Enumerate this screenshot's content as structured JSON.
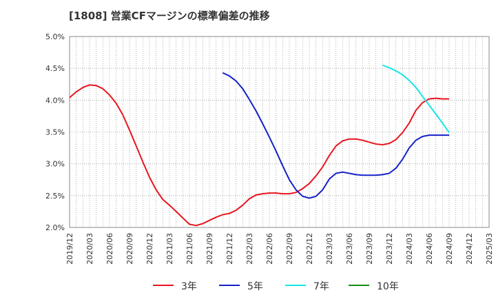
{
  "chart_data": {
    "type": "line",
    "title": "[1808]  営業CFマージンの標準偏差の推移",
    "xlabel": "",
    "ylabel": "",
    "ylim": [
      0.02,
      0.05
    ],
    "y_ticks": [
      "2.0%",
      "2.5%",
      "3.0%",
      "3.5%",
      "4.0%",
      "4.5%",
      "5.0%"
    ],
    "y_tick_values": [
      0.02,
      0.025,
      0.03,
      0.035,
      0.04,
      0.045,
      0.05
    ],
    "x_ticks": [
      "2019/12",
      "2020/03",
      "2020/06",
      "2020/09",
      "2020/12",
      "2021/03",
      "2021/06",
      "2021/09",
      "2021/12",
      "2022/03",
      "2022/06",
      "2022/09",
      "2022/12",
      "2023/03",
      "2023/06",
      "2023/09",
      "2023/12",
      "2024/03",
      "2024/06",
      "2024/09",
      "2024/12",
      "2025/03"
    ],
    "grid": true,
    "legend_position": "bottom",
    "series": [
      {
        "name": "3年",
        "color": "#e8141e",
        "x": [
          "2019/12",
          "2020/01",
          "2020/02",
          "2020/03",
          "2020/04",
          "2020/05",
          "2020/06",
          "2020/07",
          "2020/08",
          "2020/09",
          "2020/10",
          "2020/11",
          "2020/12",
          "2021/01",
          "2021/02",
          "2021/03",
          "2021/04",
          "2021/05",
          "2021/06",
          "2021/07",
          "2021/08",
          "2021/09",
          "2021/10",
          "2021/11",
          "2021/12",
          "2022/01",
          "2022/02",
          "2022/03",
          "2022/04",
          "2022/05",
          "2022/06",
          "2022/07",
          "2022/08",
          "2022/09",
          "2022/10",
          "2022/11",
          "2022/12",
          "2023/01",
          "2023/02",
          "2023/03",
          "2023/04",
          "2023/05",
          "2023/06",
          "2023/07",
          "2023/08",
          "2023/09",
          "2023/10",
          "2023/11",
          "2023/12",
          "2024/01",
          "2024/02",
          "2024/03",
          "2024/04",
          "2024/05",
          "2024/06",
          "2024/07",
          "2024/08",
          "2024/09"
        ],
        "values": [
          0.0404,
          0.0413,
          0.042,
          0.0424,
          0.0423,
          0.0418,
          0.0408,
          0.0395,
          0.0377,
          0.0353,
          0.0328,
          0.0303,
          0.0279,
          0.0259,
          0.0244,
          0.0235,
          0.0225,
          0.0215,
          0.0205,
          0.0203,
          0.0206,
          0.0211,
          0.0216,
          0.022,
          0.0222,
          0.0227,
          0.0235,
          0.0245,
          0.0251,
          0.0253,
          0.0254,
          0.0254,
          0.0253,
          0.0253,
          0.0255,
          0.0261,
          0.0269,
          0.0281,
          0.0295,
          0.0313,
          0.0328,
          0.0336,
          0.0339,
          0.0339,
          0.0337,
          0.0334,
          0.0331,
          0.033,
          0.0332,
          0.0338,
          0.0349,
          0.0364,
          0.0384,
          0.0396,
          0.0402,
          0.0403,
          0.0402,
          0.0402
        ]
      },
      {
        "name": "5年",
        "color": "#1420c8",
        "x": [
          "2021/11",
          "2021/12",
          "2022/01",
          "2022/02",
          "2022/03",
          "2022/04",
          "2022/05",
          "2022/06",
          "2022/07",
          "2022/08",
          "2022/09",
          "2022/10",
          "2022/11",
          "2022/12",
          "2023/01",
          "2023/02",
          "2023/03",
          "2023/04",
          "2023/05",
          "2023/06",
          "2023/07",
          "2023/08",
          "2023/09",
          "2023/10",
          "2023/11",
          "2023/12",
          "2024/01",
          "2024/02",
          "2024/03",
          "2024/04",
          "2024/05",
          "2024/06",
          "2024/07",
          "2024/08",
          "2024/09"
        ],
        "values": [
          0.0443,
          0.0438,
          0.043,
          0.0418,
          0.0401,
          0.0383,
          0.0363,
          0.0342,
          0.032,
          0.0297,
          0.0275,
          0.0259,
          0.0249,
          0.0246,
          0.0249,
          0.0259,
          0.0276,
          0.0285,
          0.0287,
          0.0285,
          0.0283,
          0.0282,
          0.0282,
          0.0282,
          0.0283,
          0.0285,
          0.0293,
          0.0307,
          0.0325,
          0.0337,
          0.0343,
          0.0345,
          0.0345,
          0.0345,
          0.0345
        ]
      },
      {
        "name": "7年",
        "color": "#14e6e6",
        "x": [
          "2023/11",
          "2023/12",
          "2024/01",
          "2024/02",
          "2024/03",
          "2024/04",
          "2024/05",
          "2024/06",
          "2024/07",
          "2024/08",
          "2024/09"
        ],
        "values": [
          0.0455,
          0.0451,
          0.0446,
          0.044,
          0.0431,
          0.042,
          0.0406,
          0.0392,
          0.0378,
          0.0364,
          0.0349
        ]
      },
      {
        "name": "10年",
        "color": "#148c14",
        "x": [],
        "values": []
      }
    ]
  }
}
